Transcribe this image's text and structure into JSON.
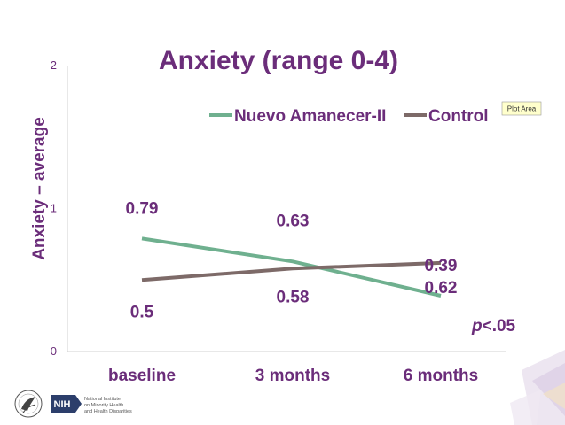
{
  "chart_data": {
    "type": "line",
    "title": "Anxiety (range 0-4)",
    "ylabel": "Anxiety – average",
    "xlabel": "",
    "categories": [
      "baseline",
      "3 months",
      "6 months"
    ],
    "ylim": [
      0,
      2
    ],
    "yticks": [
      "0",
      "1",
      "2"
    ],
    "legend_position": "top-right",
    "series": [
      {
        "name": "Nuevo Amanecer-II",
        "values": [
          0.79,
          0.63,
          0.39
        ],
        "labels": [
          "0.79",
          "0.63",
          "0.39"
        ],
        "color": "#6fb08f",
        "label_side": "above"
      },
      {
        "name": "Control",
        "values": [
          0.5,
          0.58,
          0.62
        ],
        "labels": [
          "0.5",
          "0.58",
          "0.62"
        ],
        "color": "#7d6a68",
        "label_side": "below"
      }
    ],
    "annotation_italic": "p",
    "annotation_rest": "<.05"
  },
  "tooltip": {
    "label": "Plot Area"
  },
  "footer": {
    "logo_text": "NIH",
    "org_lines": [
      "National Institute",
      "on Minority Health",
      "and Health Disparities"
    ]
  },
  "colors": {
    "accent": "#6b2d7a",
    "axis": "#d0d0d0"
  }
}
